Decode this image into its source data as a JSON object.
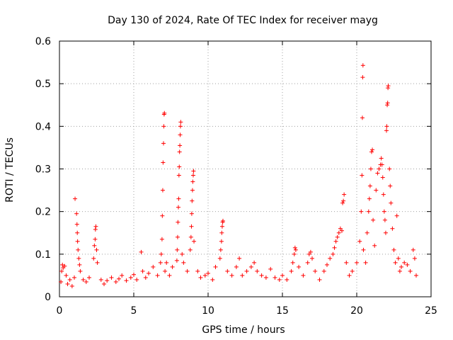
{
  "chart_data": {
    "type": "scatter",
    "title": "Day 130 of 2024, Rate Of TEC Index for receiver mayg",
    "xlabel": "GPS time / hours",
    "ylabel": "ROTI / TECUs",
    "xlim": [
      0,
      25
    ],
    "ylim": [
      0,
      0.6
    ],
    "xticks": [
      0,
      5,
      10,
      15,
      20,
      25
    ],
    "yticks": [
      0,
      0.1,
      0.2,
      0.3,
      0.4,
      0.5,
      0.6
    ],
    "xtick_labels": [
      "0",
      "5",
      "10",
      "15",
      "20",
      "25"
    ],
    "ytick_labels": [
      "0",
      "0.1",
      "0.2",
      "0.3",
      "0.4",
      "0.5",
      "0.6"
    ],
    "grid": true,
    "marker": "+",
    "color": "#ff0000",
    "series": [
      {
        "name": "ROTI",
        "points": [
          [
            0.1,
            0.035
          ],
          [
            0.15,
            0.06
          ],
          [
            0.2,
            0.075
          ],
          [
            0.25,
            0.068
          ],
          [
            0.35,
            0.072
          ],
          [
            0.45,
            0.05
          ],
          [
            0.55,
            0.03
          ],
          [
            0.7,
            0.04
          ],
          [
            0.85,
            0.025
          ],
          [
            1.0,
            0.045
          ],
          [
            1.05,
            0.23
          ],
          [
            1.15,
            0.195
          ],
          [
            1.18,
            0.17
          ],
          [
            1.2,
            0.15
          ],
          [
            1.22,
            0.13
          ],
          [
            1.25,
            0.11
          ],
          [
            1.3,
            0.09
          ],
          [
            1.35,
            0.075
          ],
          [
            1.4,
            0.06
          ],
          [
            1.6,
            0.04
          ],
          [
            1.8,
            0.035
          ],
          [
            2.0,
            0.045
          ],
          [
            2.3,
            0.09
          ],
          [
            2.35,
            0.12
          ],
          [
            2.4,
            0.135
          ],
          [
            2.42,
            0.158
          ],
          [
            2.45,
            0.165
          ],
          [
            2.5,
            0.11
          ],
          [
            2.55,
            0.08
          ],
          [
            2.8,
            0.04
          ],
          [
            3.0,
            0.03
          ],
          [
            3.2,
            0.038
          ],
          [
            3.5,
            0.045
          ],
          [
            3.8,
            0.035
          ],
          [
            4.0,
            0.042
          ],
          [
            4.2,
            0.05
          ],
          [
            4.5,
            0.038
          ],
          [
            4.8,
            0.045
          ],
          [
            5.0,
            0.052
          ],
          [
            5.2,
            0.04
          ],
          [
            5.5,
            0.105
          ],
          [
            5.6,
            0.06
          ],
          [
            5.8,
            0.045
          ],
          [
            6.0,
            0.055
          ],
          [
            6.3,
            0.07
          ],
          [
            6.6,
            0.05
          ],
          [
            6.8,
            0.08
          ],
          [
            6.85,
            0.1
          ],
          [
            6.9,
            0.135
          ],
          [
            6.92,
            0.19
          ],
          [
            6.95,
            0.25
          ],
          [
            6.97,
            0.315
          ],
          [
            7.0,
            0.36
          ],
          [
            7.02,
            0.4
          ],
          [
            7.04,
            0.428
          ],
          [
            7.06,
            0.431
          ],
          [
            7.1,
            0.06
          ],
          [
            7.2,
            0.08
          ],
          [
            7.4,
            0.05
          ],
          [
            7.6,
            0.07
          ],
          [
            7.9,
            0.085
          ],
          [
            7.92,
            0.11
          ],
          [
            7.95,
            0.14
          ],
          [
            7.97,
            0.175
          ],
          [
            8.0,
            0.21
          ],
          [
            8.02,
            0.23
          ],
          [
            8.04,
            0.285
          ],
          [
            8.06,
            0.305
          ],
          [
            8.08,
            0.34
          ],
          [
            8.1,
            0.355
          ],
          [
            8.12,
            0.38
          ],
          [
            8.14,
            0.4
          ],
          [
            8.16,
            0.41
          ],
          [
            8.25,
            0.1
          ],
          [
            8.35,
            0.08
          ],
          [
            8.6,
            0.06
          ],
          [
            8.8,
            0.11
          ],
          [
            8.85,
            0.14
          ],
          [
            8.88,
            0.165
          ],
          [
            8.9,
            0.195
          ],
          [
            8.92,
            0.225
          ],
          [
            8.95,
            0.25
          ],
          [
            8.97,
            0.27
          ],
          [
            9.0,
            0.285
          ],
          [
            9.02,
            0.295
          ],
          [
            9.05,
            0.13
          ],
          [
            9.3,
            0.06
          ],
          [
            9.5,
            0.045
          ],
          [
            9.8,
            0.05
          ],
          [
            10.0,
            0.055
          ],
          [
            10.3,
            0.04
          ],
          [
            10.5,
            0.07
          ],
          [
            10.8,
            0.09
          ],
          [
            10.85,
            0.11
          ],
          [
            10.9,
            0.13
          ],
          [
            10.92,
            0.15
          ],
          [
            10.95,
            0.165
          ],
          [
            10.98,
            0.175
          ],
          [
            11.0,
            0.178
          ],
          [
            11.3,
            0.06
          ],
          [
            11.6,
            0.05
          ],
          [
            11.9,
            0.07
          ],
          [
            12.1,
            0.09
          ],
          [
            12.3,
            0.05
          ],
          [
            12.6,
            0.06
          ],
          [
            12.9,
            0.07
          ],
          [
            13.1,
            0.08
          ],
          [
            13.3,
            0.06
          ],
          [
            13.6,
            0.05
          ],
          [
            13.9,
            0.045
          ],
          [
            14.2,
            0.065
          ],
          [
            14.5,
            0.045
          ],
          [
            14.8,
            0.04
          ],
          [
            15.0,
            0.05
          ],
          [
            15.3,
            0.04
          ],
          [
            15.6,
            0.06
          ],
          [
            15.7,
            0.08
          ],
          [
            15.8,
            0.1
          ],
          [
            15.85,
            0.115
          ],
          [
            15.9,
            0.11
          ],
          [
            16.1,
            0.07
          ],
          [
            16.4,
            0.05
          ],
          [
            16.7,
            0.08
          ],
          [
            16.8,
            0.1
          ],
          [
            16.9,
            0.105
          ],
          [
            17.0,
            0.09
          ],
          [
            17.2,
            0.06
          ],
          [
            17.5,
            0.04
          ],
          [
            17.8,
            0.06
          ],
          [
            18.0,
            0.075
          ],
          [
            18.2,
            0.09
          ],
          [
            18.4,
            0.1
          ],
          [
            18.5,
            0.115
          ],
          [
            18.6,
            0.13
          ],
          [
            18.7,
            0.14
          ],
          [
            18.8,
            0.15
          ],
          [
            18.9,
            0.16
          ],
          [
            19.0,
            0.155
          ],
          [
            19.05,
            0.22
          ],
          [
            19.1,
            0.225
          ],
          [
            19.15,
            0.24
          ],
          [
            19.3,
            0.08
          ],
          [
            19.5,
            0.05
          ],
          [
            19.7,
            0.06
          ],
          [
            20.0,
            0.08
          ],
          [
            20.2,
            0.13
          ],
          [
            20.3,
            0.2
          ],
          [
            20.35,
            0.285
          ],
          [
            20.38,
            0.42
          ],
          [
            20.4,
            0.515
          ],
          [
            20.42,
            0.543
          ],
          [
            20.45,
            0.11
          ],
          [
            20.6,
            0.08
          ],
          [
            20.7,
            0.15
          ],
          [
            20.8,
            0.2
          ],
          [
            20.85,
            0.23
          ],
          [
            20.9,
            0.26
          ],
          [
            20.95,
            0.3
          ],
          [
            21.0,
            0.34
          ],
          [
            21.05,
            0.345
          ],
          [
            21.1,
            0.18
          ],
          [
            21.2,
            0.12
          ],
          [
            21.3,
            0.25
          ],
          [
            21.4,
            0.29
          ],
          [
            21.5,
            0.3
          ],
          [
            21.6,
            0.31
          ],
          [
            21.65,
            0.325
          ],
          [
            21.7,
            0.31
          ],
          [
            21.75,
            0.28
          ],
          [
            21.8,
            0.24
          ],
          [
            21.85,
            0.2
          ],
          [
            21.9,
            0.18
          ],
          [
            21.95,
            0.15
          ],
          [
            22.0,
            0.39
          ],
          [
            22.02,
            0.4
          ],
          [
            22.05,
            0.45
          ],
          [
            22.08,
            0.455
          ],
          [
            22.1,
            0.49
          ],
          [
            22.12,
            0.495
          ],
          [
            22.2,
            0.3
          ],
          [
            22.25,
            0.26
          ],
          [
            22.3,
            0.22
          ],
          [
            22.4,
            0.16
          ],
          [
            22.5,
            0.11
          ],
          [
            22.6,
            0.08
          ],
          [
            22.7,
            0.19
          ],
          [
            22.8,
            0.09
          ],
          [
            22.9,
            0.06
          ],
          [
            23.0,
            0.07
          ],
          [
            23.2,
            0.08
          ],
          [
            23.4,
            0.075
          ],
          [
            23.6,
            0.06
          ],
          [
            23.8,
            0.11
          ],
          [
            23.9,
            0.09
          ],
          [
            24.0,
            0.05
          ]
        ]
      }
    ]
  }
}
